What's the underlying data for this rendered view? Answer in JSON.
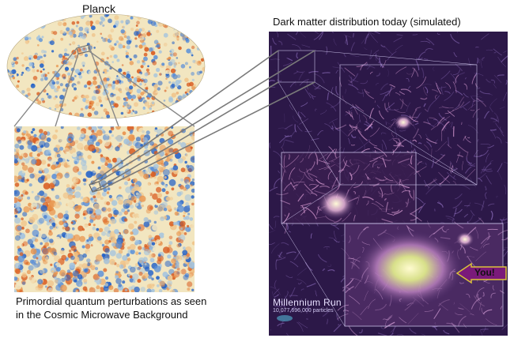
{
  "labels": {
    "planck_title": "Planck",
    "dark_matter_title": "Dark matter distribution today (simulated)",
    "cmb_caption": "Primordial quantum perturbations as seen in the Cosmic Microwave Background",
    "simulation_name": "Millennium Run",
    "particle_count": "10,077,696,000 particles",
    "you_marker": "You!"
  },
  "colors": {
    "cmb_cold": "#1f5fc8",
    "cmb_neutral": "#f2e6c0",
    "cmb_hot": "#d85a1e",
    "dark_matter_background": "#2c1848",
    "filament_glow": "#e9a8e0",
    "halo_core": "#f6f2a0",
    "you_arrow": "#7a1a7a",
    "you_text": "#111111",
    "connector_lines": "#8a8a8a"
  }
}
